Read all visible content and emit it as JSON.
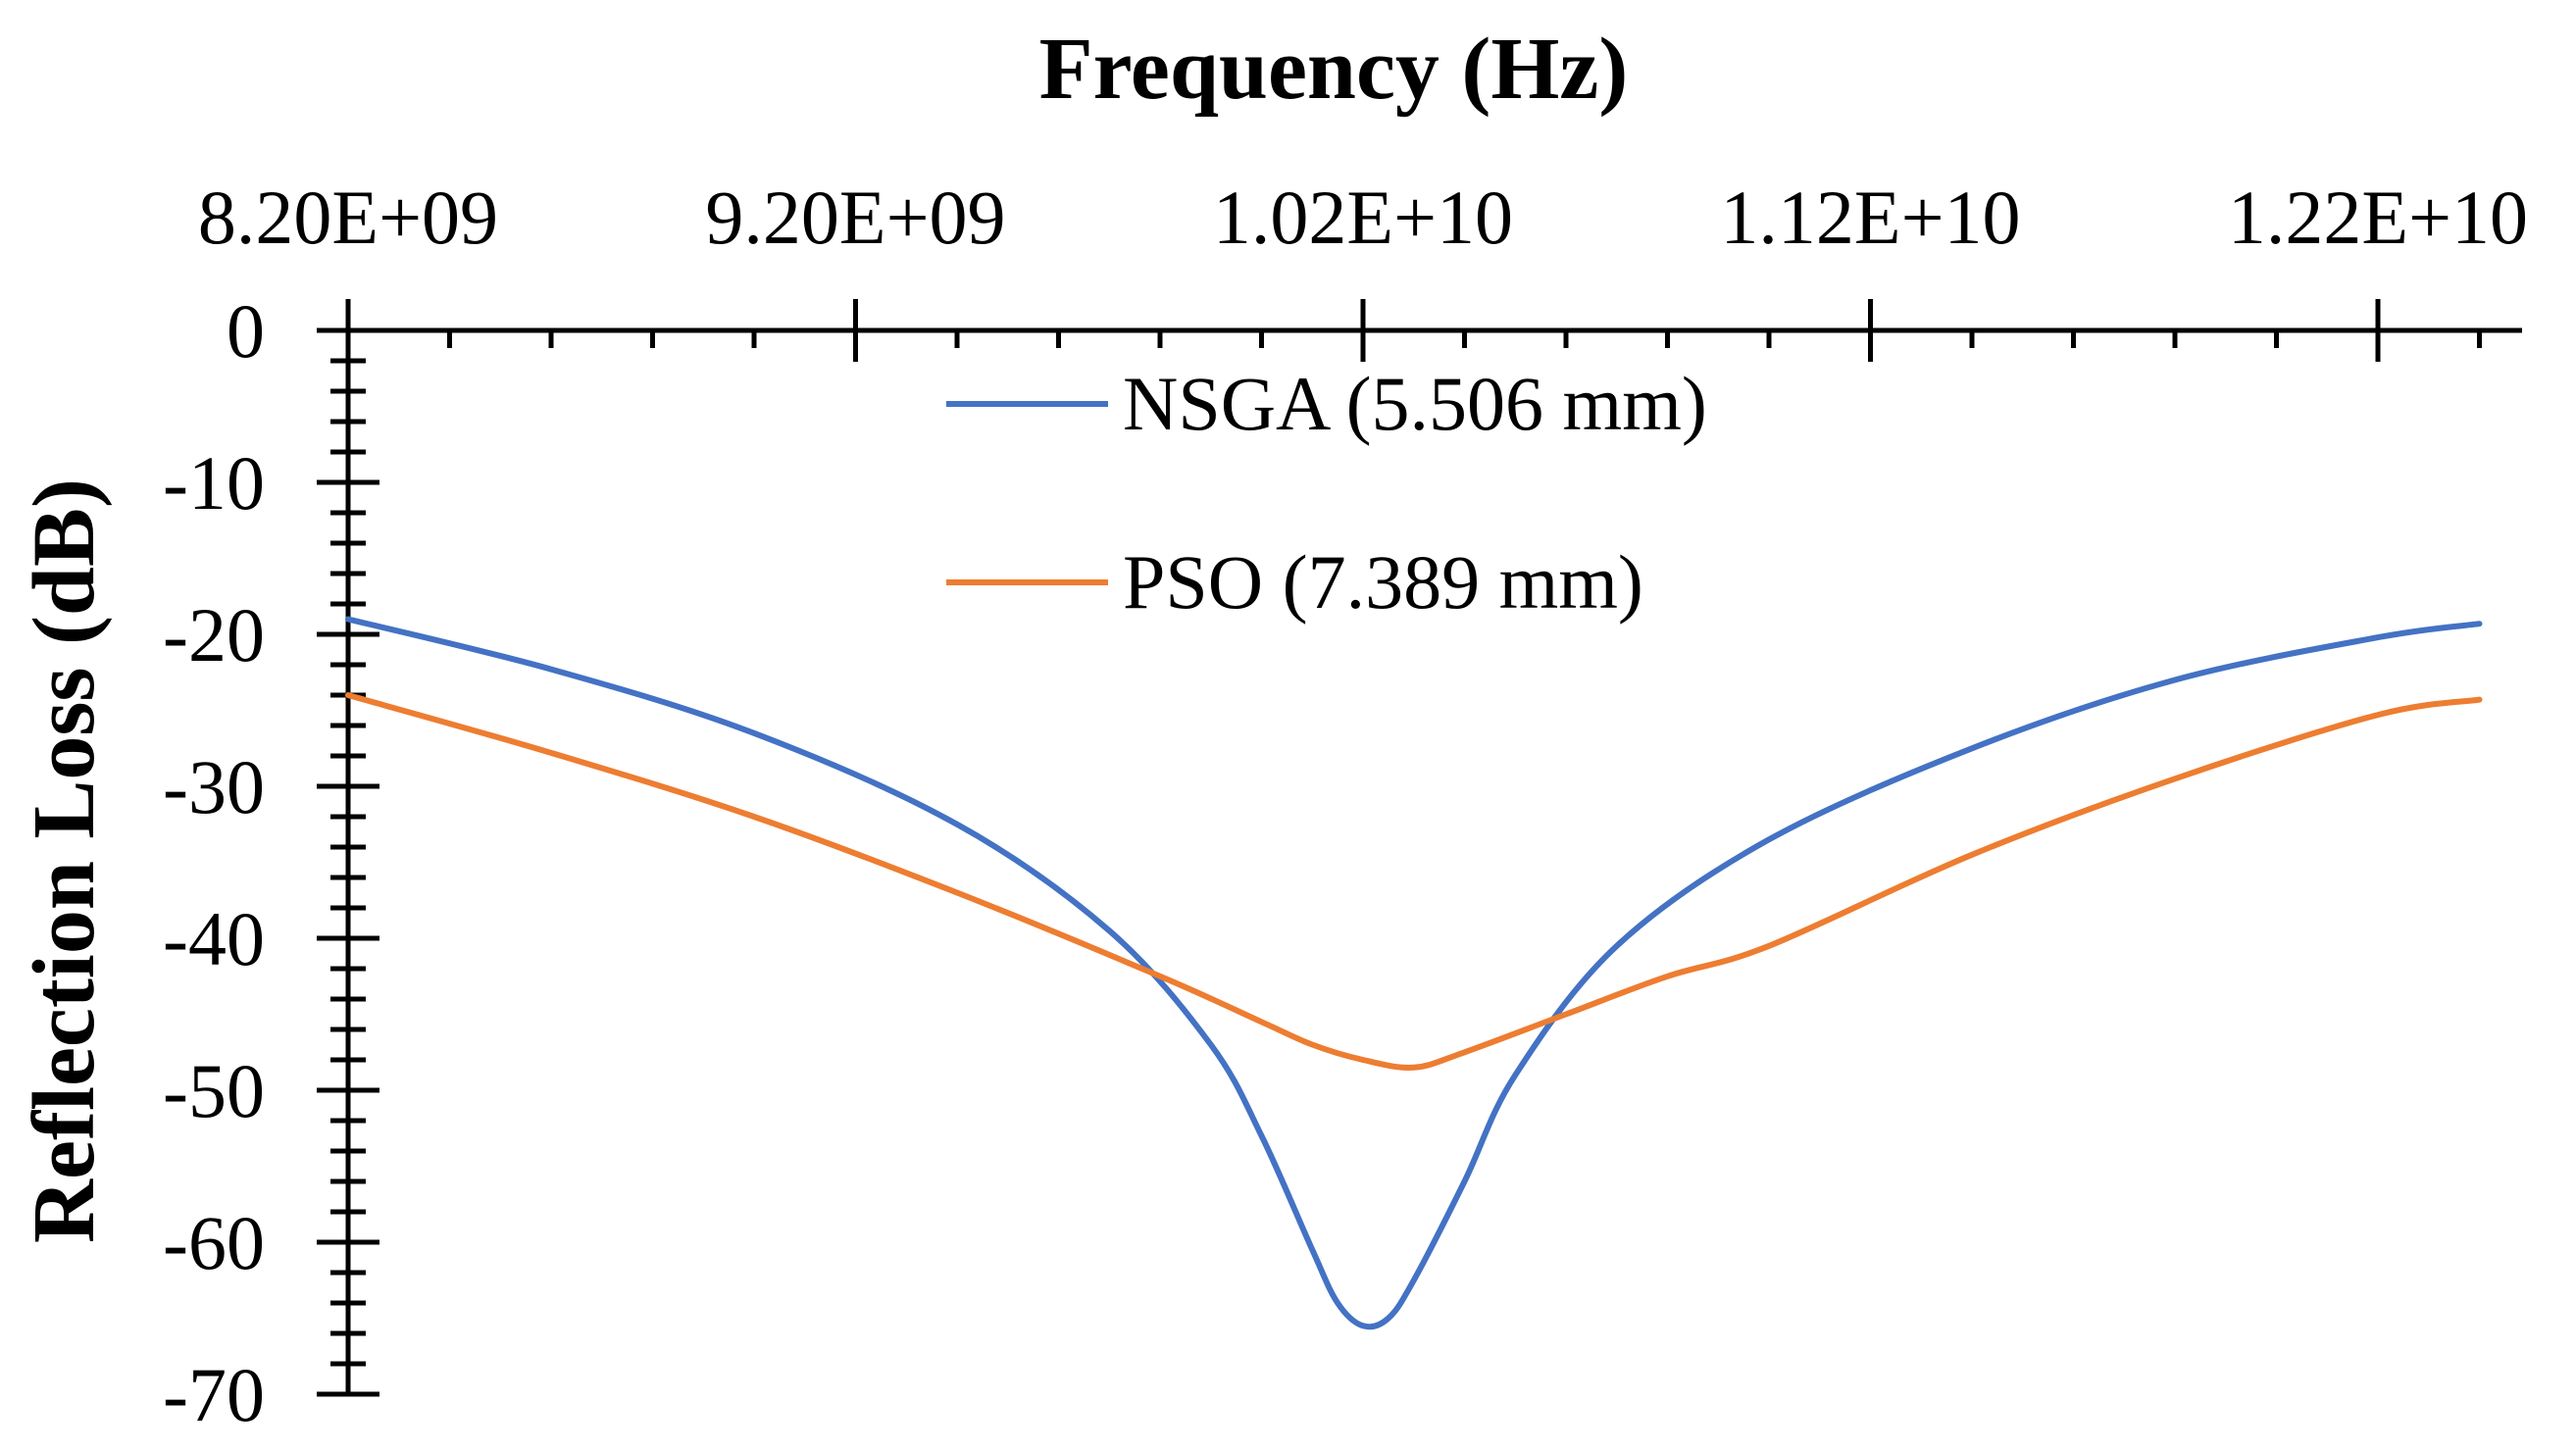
{
  "chart_data": {
    "type": "line",
    "title": "",
    "xlabel": "Frequency (Hz)",
    "ylabel": "Reflection Loss (dB)",
    "xlim": [
      8200000000,
      12400000000
    ],
    "ylim": [
      -70,
      0
    ],
    "x_ticks": [
      8200000000,
      9200000000,
      10200000000,
      11200000000,
      12200000000
    ],
    "x_tick_labels": [
      "8.20E+09",
      "9.20E+09",
      "1.02E+10",
      "1.12E+10",
      "1.22E+10"
    ],
    "y_ticks": [
      0,
      -10,
      -20,
      -30,
      -40,
      -50,
      -60,
      -70
    ],
    "y_tick_labels": [
      "0",
      "-10",
      "-20",
      "-30",
      "-40",
      "-50",
      "-60",
      "-70"
    ],
    "x_axis_position": "top",
    "legend_position": "top-center",
    "series": [
      {
        "name": "NSGA (5.506 mm)",
        "color": "#4472C4",
        "x": [
          8200000000,
          8600000000,
          9000000000,
          9400000000,
          9700000000,
          9900000000,
          10000000000,
          10100000000,
          10150000000,
          10200000000,
          10250000000,
          10300000000,
          10400000000,
          10500000000,
          10700000000,
          11000000000,
          11400000000,
          11800000000,
          12200000000,
          12400000000
        ],
        "y": [
          -19,
          -22.3,
          -26.5,
          -32.5,
          -39.5,
          -47,
          -53,
          -60.5,
          -64,
          -65.5,
          -65,
          -62.5,
          -56,
          -49,
          -40.5,
          -33.5,
          -27.5,
          -23,
          -20.2,
          -19.3
        ]
      },
      {
        "name": "PSO (7.389 mm)",
        "color": "#ED7D31",
        "x": [
          8200000000,
          8600000000,
          9000000000,
          9400000000,
          9800000000,
          10000000000,
          10100000000,
          10200000000,
          10300000000,
          10400000000,
          10600000000,
          10800000000,
          11000000000,
          11400000000,
          11800000000,
          12200000000,
          12400000000
        ],
        "y": [
          -24,
          -27.8,
          -32,
          -37,
          -42.5,
          -45.5,
          -47,
          -48,
          -48.5,
          -47.5,
          -45,
          -42.5,
          -40.5,
          -34.5,
          -29.5,
          -25.3,
          -24.3
        ]
      }
    ]
  }
}
